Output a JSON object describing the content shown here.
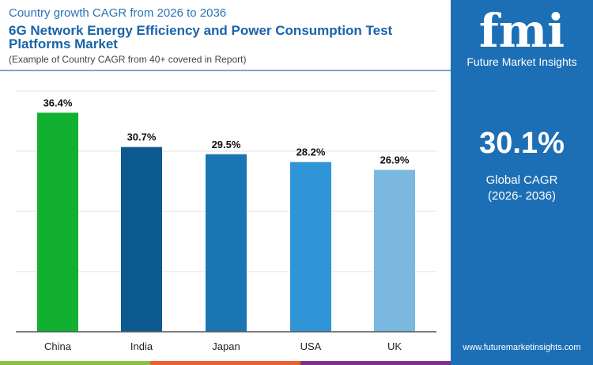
{
  "header": {
    "subtitle": "Country growth CAGR from 2026 to 2036",
    "title": "6G Network Energy Efficiency and Power Consumption Test Platforms Market",
    "note": "(Example of Country CAGR from 40+ covered in Report)"
  },
  "panel": {
    "logo": "fmi",
    "logo_text": "Future Market Insights",
    "value": "30.1%",
    "label": "Global CAGR",
    "period": "(2026- 2036)",
    "url": "www.futuremarketinsights.com",
    "color": "#1d6fb5"
  },
  "chart_data": {
    "type": "bar",
    "categories": [
      "China",
      "India",
      "Japan",
      "USA",
      "UK"
    ],
    "values": [
      36.4,
      30.7,
      29.5,
      28.2,
      26.9
    ],
    "labels": [
      "36.4%",
      "30.7%",
      "29.5%",
      "28.2%",
      "26.9%"
    ],
    "colors": [
      "#12b031",
      "#0d5a91",
      "#1b75b3",
      "#3095d6",
      "#7ab8e0"
    ],
    "ylim": [
      0,
      40
    ],
    "grid": true,
    "xlabel": "",
    "ylabel": ""
  }
}
